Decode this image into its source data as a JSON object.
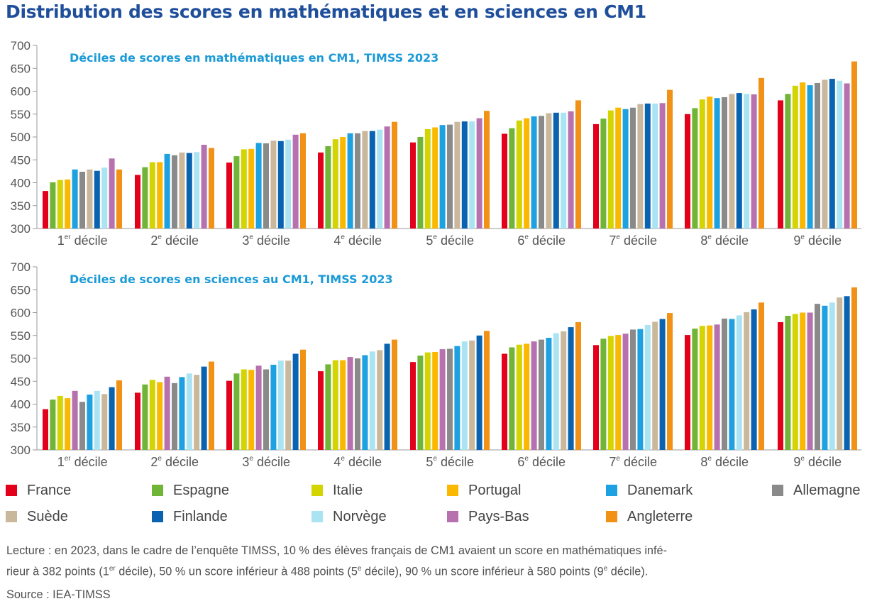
{
  "title": "Distribution des scores en mathématiques et en sciences en CM1",
  "colors": {
    "France": "#e3001b",
    "Espagne": "#70b535",
    "Italie": "#d4d400",
    "Portugal": "#fbb800",
    "Danemark": "#1ea1e0",
    "Allemagne": "#8a8a8a",
    "Suède": "#c9b89c",
    "Finlande": "#0a63b0",
    "Norvège": "#aae4f2",
    "Pays-Bas": "#b671ae",
    "Angleterre": "#f19115"
  },
  "legend": [
    {
      "label": "France",
      "color": "#e3001b"
    },
    {
      "label": "Espagne",
      "color": "#70b535"
    },
    {
      "label": "Italie",
      "color": "#d4d400"
    },
    {
      "label": "Portugal",
      "color": "#fbb800"
    },
    {
      "label": "Danemark",
      "color": "#1ea1e0"
    },
    {
      "label": "Allemagne",
      "color": "#8a8a8a"
    },
    {
      "label": "Suède",
      "color": "#c9b89c"
    },
    {
      "label": "Finlande",
      "color": "#0a63b0"
    },
    {
      "label": "Norvège",
      "color": "#aae4f2"
    },
    {
      "label": "Pays-Bas",
      "color": "#b671ae"
    },
    {
      "label": "Angleterre",
      "color": "#f19115"
    }
  ],
  "note": {
    "line1": "Lecture : en 2023, dans le cadre de l’enquête TIMSS, 10 % des élèves français de CM1 avaient un score en mathématiques infé-",
    "line2a": "rieur à 382 points (1",
    "line2a_sup": "er",
    "line2b": " décile), 50 % un score inférieur à 488 points (5",
    "line2b_sup": "e",
    "line2c": " décile), 90 % un score inférieur à 580 points (9",
    "line2c_sup": "e",
    "line2d": " décile)."
  },
  "source": "Source : IEA-TIMSS",
  "chart_data": [
    {
      "type": "bar",
      "title": "Déciles de scores en mathématiques en CM1, TIMSS 2023",
      "ylim": [
        300,
        700
      ],
      "yticks": [
        300,
        350,
        400,
        450,
        500,
        550,
        600,
        650,
        700
      ],
      "grid": false,
      "categories": [
        {
          "num": "1",
          "sup": "er",
          "text": " décile"
        },
        {
          "num": "2",
          "sup": "e",
          "text": " décile"
        },
        {
          "num": "3",
          "sup": "e",
          "text": " décile"
        },
        {
          "num": "4",
          "sup": "e",
          "text": " décile"
        },
        {
          "num": "5",
          "sup": "e",
          "text": " décile"
        },
        {
          "num": "6",
          "sup": "e",
          "text": " décile"
        },
        {
          "num": "7",
          "sup": "e",
          "text": " décile"
        },
        {
          "num": "8",
          "sup": "e",
          "text": " décile"
        },
        {
          "num": "9",
          "sup": "e",
          "text": " décile"
        }
      ],
      "series": [
        {
          "name": "France",
          "values": [
            382,
            417,
            444,
            466,
            488,
            507,
            528,
            550,
            580
          ]
        },
        {
          "name": "Espagne",
          "values": [
            401,
            434,
            458,
            480,
            500,
            519,
            540,
            563,
            594
          ]
        },
        {
          "name": "Italie",
          "values": [
            406,
            445,
            473,
            495,
            517,
            536,
            558,
            582,
            612
          ]
        },
        {
          "name": "Portugal",
          "values": [
            407,
            445,
            474,
            500,
            521,
            541,
            564,
            588,
            619
          ]
        },
        {
          "name": "Danemark",
          "values": [
            429,
            463,
            487,
            508,
            526,
            545,
            561,
            585,
            613
          ]
        },
        {
          "name": "Allemagne",
          "values": [
            424,
            460,
            486,
            508,
            527,
            546,
            564,
            587,
            618
          ]
        },
        {
          "name": "Suède",
          "values": [
            429,
            466,
            492,
            513,
            533,
            552,
            572,
            594,
            625
          ]
        },
        {
          "name": "Finlande",
          "values": [
            426,
            465,
            491,
            513,
            534,
            553,
            573,
            596,
            627
          ]
        },
        {
          "name": "Norvège",
          "values": [
            433,
            467,
            494,
            516,
            534,
            553,
            573,
            594,
            623
          ]
        },
        {
          "name": "Pays-Bas",
          "values": [
            453,
            483,
            505,
            523,
            541,
            556,
            574,
            593,
            617
          ]
        },
        {
          "name": "Angleterre",
          "values": [
            429,
            476,
            508,
            533,
            557,
            580,
            603,
            629,
            665
          ]
        }
      ]
    },
    {
      "type": "bar",
      "title": "Déciles de scores en sciences au CM1, TIMSS 2023",
      "ylim": [
        300,
        700
      ],
      "yticks": [
        300,
        350,
        400,
        450,
        500,
        550,
        600,
        650,
        700
      ],
      "grid": false,
      "categories": [
        {
          "num": "1",
          "sup": "er",
          "text": " décile"
        },
        {
          "num": "2",
          "sup": "e",
          "text": " décile"
        },
        {
          "num": "3",
          "sup": "e",
          "text": " décile"
        },
        {
          "num": "4",
          "sup": "e",
          "text": " décile"
        },
        {
          "num": "5",
          "sup": "e",
          "text": " décile"
        },
        {
          "num": "6",
          "sup": "e",
          "text": " décile"
        },
        {
          "num": "7",
          "sup": "e",
          "text": " décile"
        },
        {
          "num": "8",
          "sup": "e",
          "text": " décile"
        },
        {
          "num": "9",
          "sup": "e",
          "text": " décile"
        }
      ],
      "series": [
        {
          "name": "France",
          "values": [
            389,
            425,
            451,
            472,
            492,
            510,
            529,
            551,
            579
          ]
        },
        {
          "name": "Espagne",
          "values": [
            410,
            443,
            467,
            487,
            506,
            524,
            543,
            565,
            593
          ]
        },
        {
          "name": "Italie",
          "values": [
            418,
            453,
            476,
            496,
            513,
            530,
            549,
            571,
            597
          ]
        },
        {
          "name": "Portugal",
          "values": [
            413,
            448,
            475,
            496,
            514,
            532,
            551,
            572,
            600
          ]
        },
        {
          "name": "Pays-Bas",
          "values": [
            429,
            460,
            484,
            503,
            520,
            537,
            554,
            574,
            600
          ]
        },
        {
          "name": "Allemagne",
          "values": [
            405,
            446,
            476,
            500,
            521,
            541,
            563,
            587,
            619
          ]
        },
        {
          "name": "Danemark",
          "values": [
            421,
            459,
            486,
            507,
            527,
            545,
            564,
            586,
            615
          ]
        },
        {
          "name": "Norvège",
          "values": [
            429,
            467,
            495,
            515,
            537,
            555,
            573,
            594,
            622
          ]
        },
        {
          "name": "Suède",
          "values": [
            422,
            464,
            495,
            518,
            539,
            559,
            580,
            601,
            633
          ]
        },
        {
          "name": "Finlande",
          "values": [
            437,
            482,
            510,
            532,
            550,
            568,
            586,
            607,
            636
          ]
        },
        {
          "name": "Angleterre",
          "values": [
            452,
            493,
            519,
            541,
            560,
            579,
            599,
            622,
            655
          ]
        }
      ]
    }
  ]
}
